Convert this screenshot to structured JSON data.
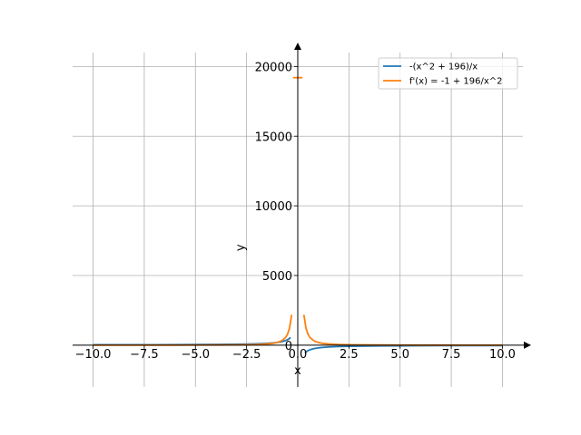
{
  "chart_data": {
    "type": "line",
    "title": "",
    "xlabel": "x",
    "ylabel": "y",
    "xlim": [
      -11,
      11
    ],
    "ylim": [
      -3000,
      21000
    ],
    "grid": true,
    "legend_position": "top-right",
    "xticks": [
      -10.0,
      -7.5,
      -5.0,
      -2.5,
      0.0,
      2.5,
      5.0,
      7.5,
      10.0
    ],
    "xtick_labels": [
      "−10.0",
      "−7.5",
      "−5.0",
      "−2.5",
      "0.0",
      "2.5",
      "5.0",
      "7.5",
      "10.0"
    ],
    "yticks": [
      0,
      5000,
      10000,
      15000,
      20000
    ],
    "ytick_labels": [
      "0",
      "5000",
      "10000",
      "15000",
      "20000"
    ],
    "series": [
      {
        "name": "-(x^2 + 196)/x",
        "color": "#1f77b4",
        "segments": [
          [
            [
              -10,
              29.6
            ],
            [
              -9,
              30.8
            ],
            [
              -8,
              32.5
            ],
            [
              -7,
              35.0
            ],
            [
              -6,
              38.7
            ],
            [
              -5,
              44.2
            ],
            [
              -4,
              53.0
            ],
            [
              -3,
              68.3
            ],
            [
              -2.5,
              80.9
            ],
            [
              -2,
              100.0
            ],
            [
              -1.5,
              132.2
            ],
            [
              -1.2,
              164.5
            ],
            [
              -1,
              197.0
            ],
            [
              -0.8,
              245.8
            ],
            [
              -0.6,
              327.3
            ],
            [
              -0.5,
              392.5
            ],
            [
              -0.4,
              490.4
            ],
            [
              -0.35,
              560.4
            ]
          ],
          [
            [
              0.35,
              -560.4
            ],
            [
              0.4,
              -490.4
            ],
            [
              0.5,
              -392.5
            ],
            [
              0.6,
              -327.3
            ],
            [
              0.8,
              -245.8
            ],
            [
              1,
              -197.0
            ],
            [
              1.2,
              -164.5
            ],
            [
              1.5,
              -132.2
            ],
            [
              2,
              -100.0
            ],
            [
              2.5,
              -80.9
            ],
            [
              3,
              -68.3
            ],
            [
              4,
              -53.0
            ],
            [
              5,
              -44.2
            ],
            [
              6,
              -38.7
            ],
            [
              7,
              -35.0
            ],
            [
              8,
              -32.5
            ],
            [
              9,
              -30.8
            ],
            [
              10,
              -29.6
            ]
          ]
        ]
      },
      {
        "name": "f'(x) = -1 + 196/x^2",
        "color": "#ff7f0e",
        "segments": [
          [
            [
              -10,
              0.96
            ],
            [
              -9,
              1.42
            ],
            [
              -8,
              2.06
            ],
            [
              -7,
              3.0
            ],
            [
              -6,
              4.44
            ],
            [
              -5,
              6.84
            ],
            [
              -4,
              11.25
            ],
            [
              -3,
              20.8
            ],
            [
              -2.5,
              30.4
            ],
            [
              -2,
              48.0
            ],
            [
              -1.5,
              86.1
            ],
            [
              -1.2,
              135.1
            ],
            [
              -1,
              195.0
            ],
            [
              -0.8,
              305.3
            ],
            [
              -0.6,
              543.4
            ],
            [
              -0.5,
              783.0
            ],
            [
              -0.4,
              1224.0
            ],
            [
              -0.3,
              2176.8
            ]
          ],
          [
            [
              -0.1,
              19199
            ]
          ],
          [
            [
              0.1,
              19199
            ]
          ],
          [
            [
              0.3,
              2176.8
            ],
            [
              0.4,
              1224.0
            ],
            [
              0.5,
              783.0
            ],
            [
              0.6,
              543.4
            ],
            [
              0.8,
              305.3
            ],
            [
              1,
              195.0
            ],
            [
              1.2,
              135.1
            ],
            [
              1.5,
              86.1
            ],
            [
              2,
              48.0
            ],
            [
              2.5,
              30.4
            ],
            [
              3,
              20.8
            ],
            [
              4,
              11.25
            ],
            [
              5,
              6.84
            ],
            [
              6,
              4.44
            ],
            [
              7,
              3.0
            ],
            [
              8,
              2.06
            ],
            [
              9,
              1.42
            ],
            [
              10,
              0.96
            ]
          ]
        ]
      }
    ]
  }
}
